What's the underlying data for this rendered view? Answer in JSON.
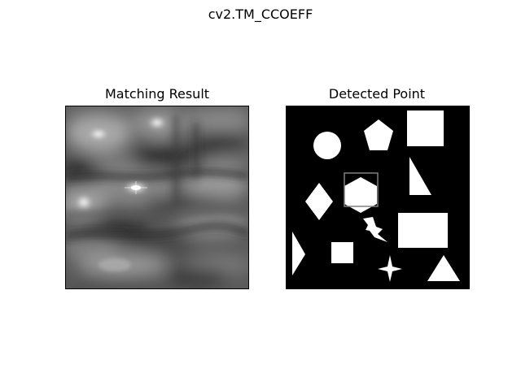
{
  "figure": {
    "suptitle": "cv2.TM_CCOEFF"
  },
  "panels": {
    "left": {
      "title": "Matching Result",
      "colormap": "gray"
    },
    "right": {
      "title": "Detected Point",
      "colormap": "gray",
      "box_color": "#808080"
    }
  },
  "shapes": [
    "circle",
    "pentagon",
    "square",
    "triangle",
    "diamond",
    "hexagon",
    "lightning",
    "rectangle",
    "half-diamond",
    "small-square",
    "four-point-star",
    "triangle"
  ]
}
